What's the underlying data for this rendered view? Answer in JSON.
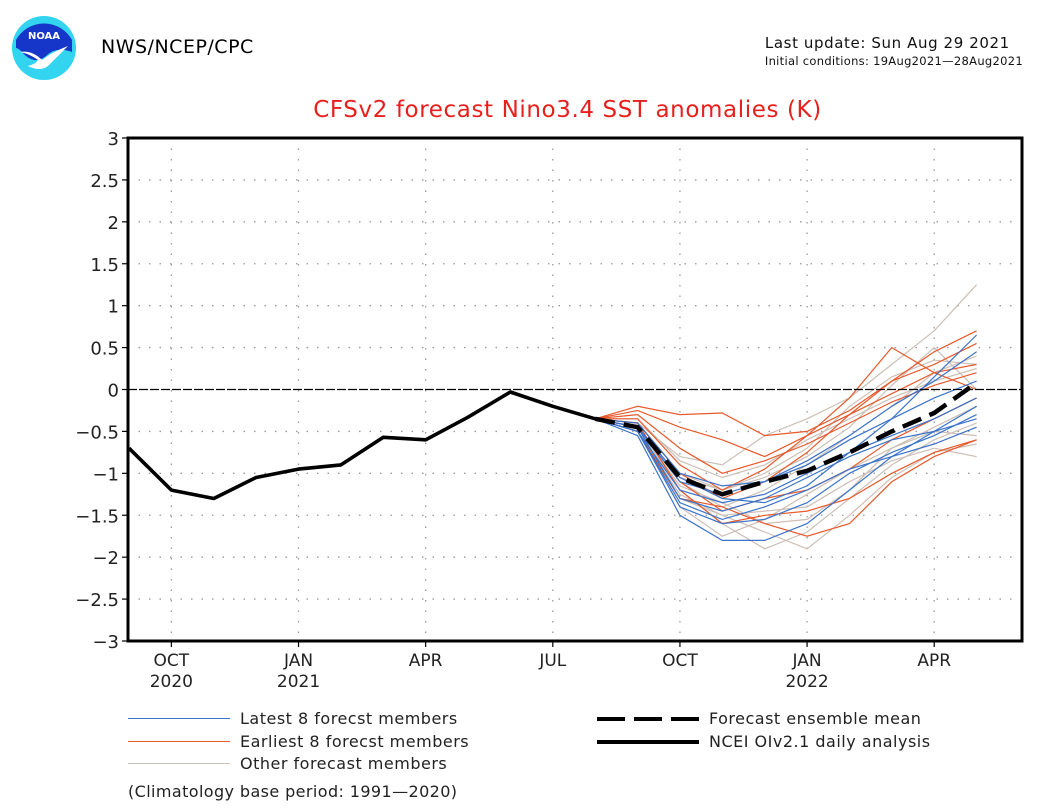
{
  "header": {
    "org_label": "NWS/NCEP/CPC",
    "logo_text": "NOAA",
    "last_update": "Last update: Sun Aug 29 2021",
    "initial_conditions": "Initial conditions: 19Aug2021—28Aug2021"
  },
  "colors": {
    "title": "#e8201c",
    "latest_members": "#3b73c9",
    "earliest_members": "#e65a2c",
    "other_members": "#cdbfb6",
    "observed": "#000000",
    "ensemble_mean": "#000000"
  },
  "chart_data": {
    "type": "line",
    "title": "CFSv2 forecast Nino3.4 SST anomalies (K)",
    "xlabel": "",
    "ylabel": "",
    "ylim": [
      -3,
      3
    ],
    "yticks": [
      3,
      2.5,
      2,
      1.5,
      1,
      0.5,
      0,
      -0.5,
      -1,
      -1.5,
      -2,
      -2.5,
      -3
    ],
    "ytick_labels": [
      "3",
      "2.5",
      "2",
      "1.5",
      "1",
      "0.5",
      "0",
      "−0.5",
      "−1",
      "−1.5",
      "−2",
      "−2.5",
      "−3"
    ],
    "xlim_months": [
      "Sep 2020",
      "Jun 2022"
    ],
    "xticks": [
      {
        "month_index": 1,
        "label": "OCT",
        "year": "2020"
      },
      {
        "month_index": 4,
        "label": "JAN",
        "year": "2021"
      },
      {
        "month_index": 7,
        "label": "APR",
        "year": ""
      },
      {
        "month_index": 10,
        "label": "JUL",
        "year": ""
      },
      {
        "month_index": 13,
        "label": "OCT",
        "year": ""
      },
      {
        "month_index": 16,
        "label": "JAN",
        "year": "2022"
      },
      {
        "month_index": 19,
        "label": "APR",
        "year": ""
      }
    ],
    "grid": true,
    "zero_line": true,
    "observed": {
      "name": "NCEI OIv2.1 daily analysis",
      "month_index": [
        0,
        1,
        2,
        3,
        4,
        5,
        6,
        7,
        8,
        9,
        10,
        11
      ],
      "values": [
        -0.7,
        -1.2,
        -1.3,
        -1.05,
        -0.95,
        -0.9,
        -0.57,
        -0.6,
        -0.33,
        -0.03,
        -0.2,
        -0.35
      ]
    },
    "ensemble_mean": {
      "name": "Forecast ensemble mean",
      "month_index": [
        11,
        12,
        13,
        14,
        15,
        16,
        17,
        18,
        19,
        20
      ],
      "values": [
        -0.35,
        -0.45,
        -1.05,
        -1.25,
        -1.1,
        -0.97,
        -0.75,
        -0.5,
        -0.28,
        0.08
      ]
    },
    "members_month_index": [
      11,
      12,
      13,
      14,
      15,
      16,
      17,
      18,
      19,
      20
    ],
    "latest_members": {
      "name": "Latest 8 forecst members",
      "series": [
        [
          -0.35,
          -0.55,
          -1.5,
          -1.8,
          -1.8,
          -1.6,
          -1.2,
          -0.8,
          -0.5,
          -0.2
        ],
        [
          -0.35,
          -0.5,
          -1.4,
          -1.6,
          -1.55,
          -1.35,
          -1.0,
          -0.75,
          -0.55,
          -0.3
        ],
        [
          -0.35,
          -0.45,
          -1.3,
          -1.45,
          -1.3,
          -1.05,
          -0.8,
          -0.6,
          -0.5,
          -0.35
        ],
        [
          -0.35,
          -0.5,
          -1.2,
          -1.35,
          -1.25,
          -1.0,
          -0.75,
          -0.55,
          -0.35,
          -0.1
        ],
        [
          -0.35,
          -0.45,
          -1.1,
          -1.25,
          -1.1,
          -0.9,
          -0.6,
          -0.35,
          -0.1,
          0.1
        ],
        [
          -0.35,
          -0.5,
          -1.35,
          -1.55,
          -1.4,
          -1.2,
          -0.95,
          -0.8,
          -0.65,
          -0.45
        ],
        [
          -0.35,
          -0.4,
          -1.0,
          -1.15,
          -1.1,
          -0.85,
          -0.55,
          -0.2,
          0.1,
          0.45
        ],
        [
          -0.35,
          -0.45,
          -1.05,
          -1.3,
          -1.35,
          -1.15,
          -0.75,
          -0.35,
          0.15,
          0.65
        ]
      ]
    },
    "earliest_members": {
      "name": "Earliest 8 forecst members",
      "series": [
        [
          -0.35,
          -0.2,
          -0.3,
          -0.28,
          -0.55,
          -0.5,
          -0.25,
          0.1,
          0.3,
          0.55
        ],
        [
          -0.35,
          -0.25,
          -0.45,
          -0.6,
          -0.8,
          -0.55,
          -0.3,
          -0.05,
          0.2,
          0.3
        ],
        [
          -0.35,
          -0.3,
          -0.7,
          -1.0,
          -0.85,
          -0.65,
          -0.4,
          -0.15,
          0.05,
          0.2
        ],
        [
          -0.35,
          -0.45,
          -1.1,
          -1.45,
          -1.3,
          -1.2,
          -0.95,
          -0.6,
          -0.35,
          -0.1
        ],
        [
          -0.35,
          -0.4,
          -1.2,
          -1.6,
          -1.5,
          -1.45,
          -1.3,
          -1.0,
          -0.75,
          -0.6
        ],
        [
          -0.35,
          -0.5,
          -1.3,
          -1.4,
          -1.6,
          -1.75,
          -1.6,
          -1.1,
          -0.8,
          -0.6
        ],
        [
          -0.35,
          -0.35,
          -0.9,
          -1.2,
          -0.95,
          -0.55,
          -0.1,
          0.5,
          0.2,
          0.0
        ],
        [
          -0.35,
          -0.4,
          -1.0,
          -1.3,
          -1.1,
          -0.75,
          -0.3,
          0.1,
          0.45,
          0.7
        ]
      ]
    },
    "other_members": {
      "name": "Other forecast members",
      "series": [
        [
          -0.35,
          -0.45,
          -1.2,
          -1.6,
          -1.9,
          -1.7,
          -1.3,
          -0.9,
          -0.6,
          -0.4
        ],
        [
          -0.35,
          -0.5,
          -1.4,
          -1.75,
          -1.55,
          -1.25,
          -0.95,
          -0.7,
          -0.45,
          -0.2
        ],
        [
          -0.35,
          -0.4,
          -0.8,
          -0.9,
          -0.55,
          -0.35,
          -0.1,
          0.3,
          0.7,
          1.25
        ],
        [
          -0.35,
          -0.45,
          -1.1,
          -1.4,
          -1.2,
          -0.9,
          -0.55,
          -0.2,
          0.2,
          0.4
        ],
        [
          -0.35,
          -0.5,
          -1.3,
          -1.5,
          -1.45,
          -1.4,
          -1.1,
          -0.85,
          -0.7,
          -0.8
        ],
        [
          -0.35,
          -0.4,
          -1.0,
          -1.2,
          -1.0,
          -0.7,
          -0.2,
          0.15,
          0.35,
          0.3
        ],
        [
          -0.35,
          -0.45,
          -1.15,
          -1.35,
          -1.6,
          -1.55,
          -1.2,
          -0.7,
          -0.5,
          -0.55
        ],
        [
          -0.35,
          -0.35,
          -0.85,
          -1.05,
          -0.9,
          -0.6,
          -0.35,
          -0.1,
          0.1,
          0.25
        ],
        [
          -0.35,
          -0.5,
          -1.25,
          -1.5,
          -1.7,
          -1.9,
          -1.5,
          -1.05,
          -0.75,
          -0.65
        ],
        [
          -0.35,
          -0.45,
          -1.05,
          -1.2,
          -1.05,
          -0.8,
          -0.45,
          0.05,
          0.5,
          0.0
        ]
      ]
    },
    "legend": [
      {
        "label": "Latest 8 forecst members",
        "style": "latest"
      },
      {
        "label": "Earliest 8 forecst members",
        "style": "earliest"
      },
      {
        "label": "Other forecast members",
        "style": "other"
      },
      {
        "label": "Forecast ensemble mean",
        "style": "dashed"
      },
      {
        "label": "NCEI OIv2.1 daily analysis",
        "style": "solid"
      }
    ],
    "legend_position": "bottom",
    "footnote": "(Climatology base period: 1991—2020)"
  }
}
